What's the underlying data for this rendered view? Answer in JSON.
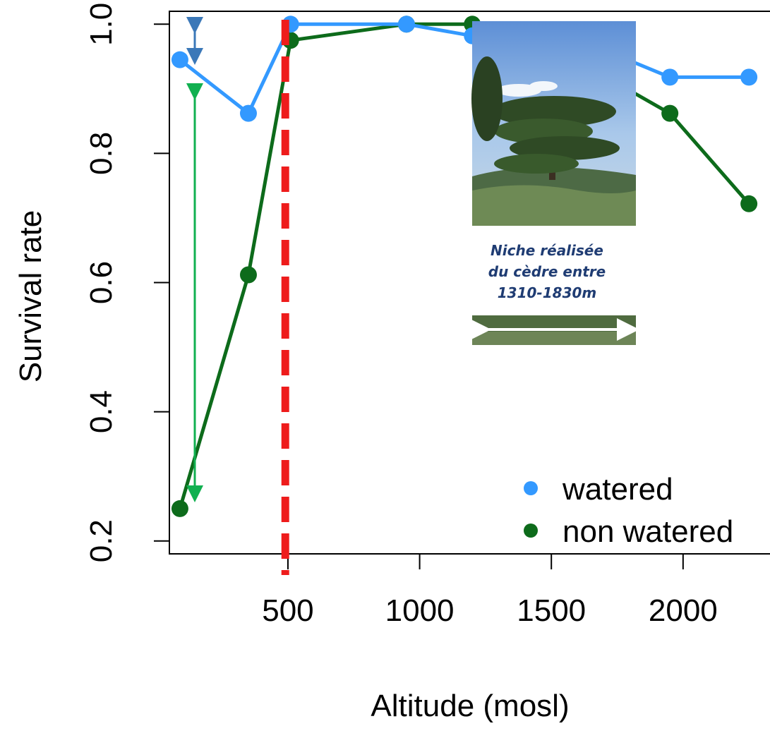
{
  "chart_data": {
    "type": "line",
    "xlabel": "Altitude (mosl)",
    "ylabel": "Survival rate",
    "xlim": [
      50,
      2330
    ],
    "ylim": [
      0.18,
      1.02
    ],
    "x_ticks": [
      500,
      1000,
      1500,
      2000
    ],
    "y_ticks": [
      0.2,
      0.4,
      0.6,
      0.8,
      1.0
    ],
    "x_tick_labels": [
      "500",
      "1000",
      "1500",
      "2000"
    ],
    "y_tick_labels": [
      "0.2",
      "0.4",
      "0.6",
      "0.8",
      "1.0"
    ],
    "grid": false,
    "legend_position": "bottom-right",
    "series": [
      {
        "name": "watered",
        "color": "#3399ff",
        "x": [
          90,
          350,
          510,
          950,
          1200,
          1700,
          1950,
          2250
        ],
        "values": [
          0.945,
          0.862,
          1.0,
          1.0,
          0.982,
          0.96,
          0.918,
          0.918
        ]
      },
      {
        "name": "non watered",
        "color": "#0d6b1b",
        "x": [
          90,
          350,
          510,
          950,
          1200,
          1700,
          1950,
          2250
        ],
        "values": [
          0.25,
          0.612,
          0.975,
          1.0,
          1.0,
          0.92,
          0.862,
          0.722
        ]
      }
    ],
    "reference_line": {
      "x": 490,
      "color": "#ee1c1c",
      "style": "dashed"
    },
    "annotations": {
      "niche_text": [
        "Niche réalisée",
        "du cèdre entre",
        "1310-1830m"
      ],
      "photo": "cedar-tree-photo"
    }
  }
}
